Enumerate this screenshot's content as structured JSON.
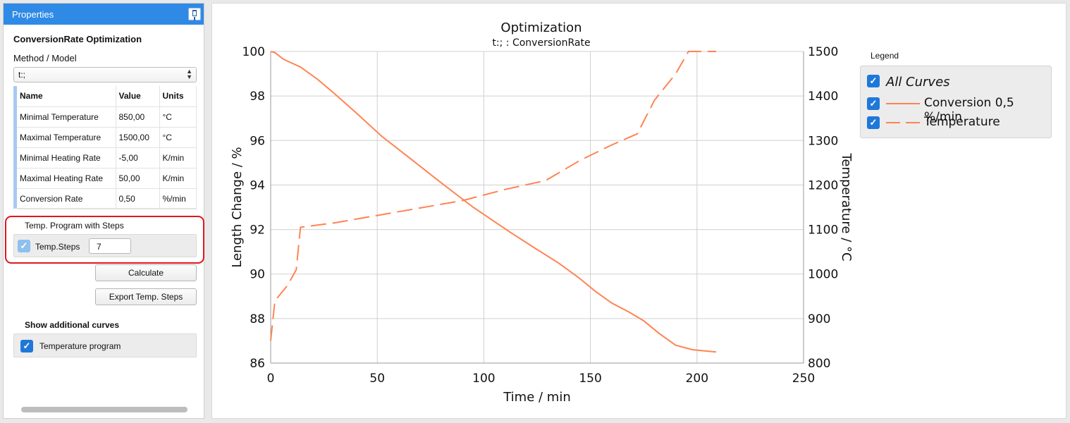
{
  "panel": {
    "title": "Properties",
    "section_title": "ConversionRate Optimization",
    "method_label": "Method / Model",
    "method_value": "t:;",
    "table": {
      "headers": [
        "Name",
        "Value",
        "Units"
      ],
      "rows": [
        [
          "Minimal Temperature",
          "850,00",
          "°C"
        ],
        [
          "Maximal Temperature",
          "1500,00",
          "°C"
        ],
        [
          "Minimal Heating Rate",
          "-5,00",
          "K/min"
        ],
        [
          "Maximal Heating Rate",
          "50,00",
          "K/min"
        ],
        [
          "Conversion Rate",
          "0,50",
          "%/min"
        ]
      ]
    },
    "steps_title": "Temp. Program with Steps",
    "steps_label": "Temp.Steps",
    "steps_value": "7",
    "steps_checked": true,
    "calculate_label": "Calculate",
    "export_label": "Export Temp. Steps",
    "additional_title": "Show additional curves",
    "temp_program_label": "Temperature program",
    "temp_program_checked": true
  },
  "legend": {
    "title": "Legend",
    "all_label": "All Curves",
    "items": [
      "Conversion 0,5 %/min",
      "Temperature"
    ]
  },
  "colors": {
    "accent": "#2f8ae6",
    "curve": "#ff8353",
    "highlight": "#e0161d"
  },
  "chart_data": {
    "type": "line",
    "title": "Optimization",
    "subtitle": "t:; : ConversionRate",
    "xlabel": "Time / min",
    "ylabel": "Length Change / %",
    "y2label": "Temperature / °C",
    "xlim": [
      0,
      250
    ],
    "ylim": [
      86,
      100
    ],
    "y2lim": [
      800,
      1500
    ],
    "xticks": [
      "0",
      "50",
      "100",
      "150",
      "200",
      "250"
    ],
    "yticks": [
      "86",
      "88",
      "90",
      "92",
      "94",
      "96",
      "98",
      "100"
    ],
    "y2ticks": [
      "800",
      "900",
      "1000",
      "1100",
      "1200",
      "1300",
      "1400",
      "1500"
    ],
    "grid": true,
    "series": [
      {
        "name": "Conversion 0,5 %/min",
        "axis": "left",
        "style": "solid",
        "x": [
          0,
          2,
          6,
          14,
          22,
          30,
          40,
          52,
          66,
          80,
          95,
          112,
          125,
          135,
          145,
          152,
          160,
          168,
          175,
          182,
          190,
          198,
          209
        ],
        "y": [
          100,
          99.95,
          99.65,
          99.3,
          98.75,
          98.1,
          97.25,
          96.2,
          95.15,
          94.1,
          93.0,
          91.9,
          91.1,
          90.5,
          89.8,
          89.25,
          88.7,
          88.3,
          87.9,
          87.35,
          86.8,
          86.6,
          86.5
        ]
      },
      {
        "name": "Temperature",
        "axis": "right",
        "style": "dashed",
        "x": [
          0,
          2,
          8,
          12,
          14,
          30,
          60,
          90,
          110,
          129,
          145,
          160,
          172,
          180,
          190,
          196,
          200,
          209
        ],
        "y": [
          850,
          940,
          975,
          1010,
          1105,
          1115,
          1140,
          1165,
          1190,
          1210,
          1255,
          1290,
          1315,
          1390,
          1450,
          1500,
          1500,
          1500
        ]
      }
    ]
  }
}
